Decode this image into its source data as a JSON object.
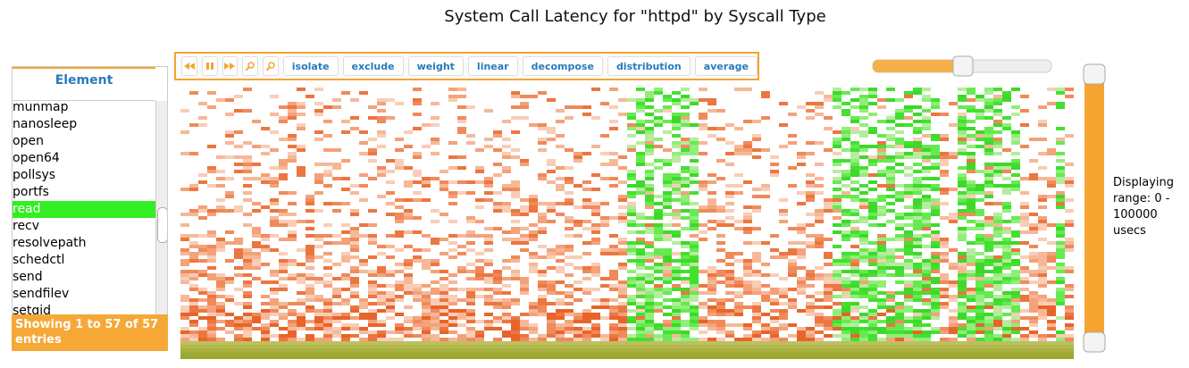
{
  "title": "System Call Latency for \"httpd\" by Syscall Type",
  "list": {
    "header": "Element",
    "items": [
      "munmap",
      "nanosleep",
      "open",
      "open64",
      "pollsys",
      "portfs",
      "read",
      "recv",
      "resolvepath",
      "schedctl",
      "send",
      "sendfilev",
      "setgid"
    ],
    "selected": "read",
    "footer": "Showing 1 to 57 of 57 entries"
  },
  "toolbar": {
    "buttons": [
      "isolate",
      "exclude",
      "weight",
      "linear",
      "decompose",
      "distribution",
      "average"
    ]
  },
  "range_text": "Displaying range: 0 - 100000 usecs"
}
